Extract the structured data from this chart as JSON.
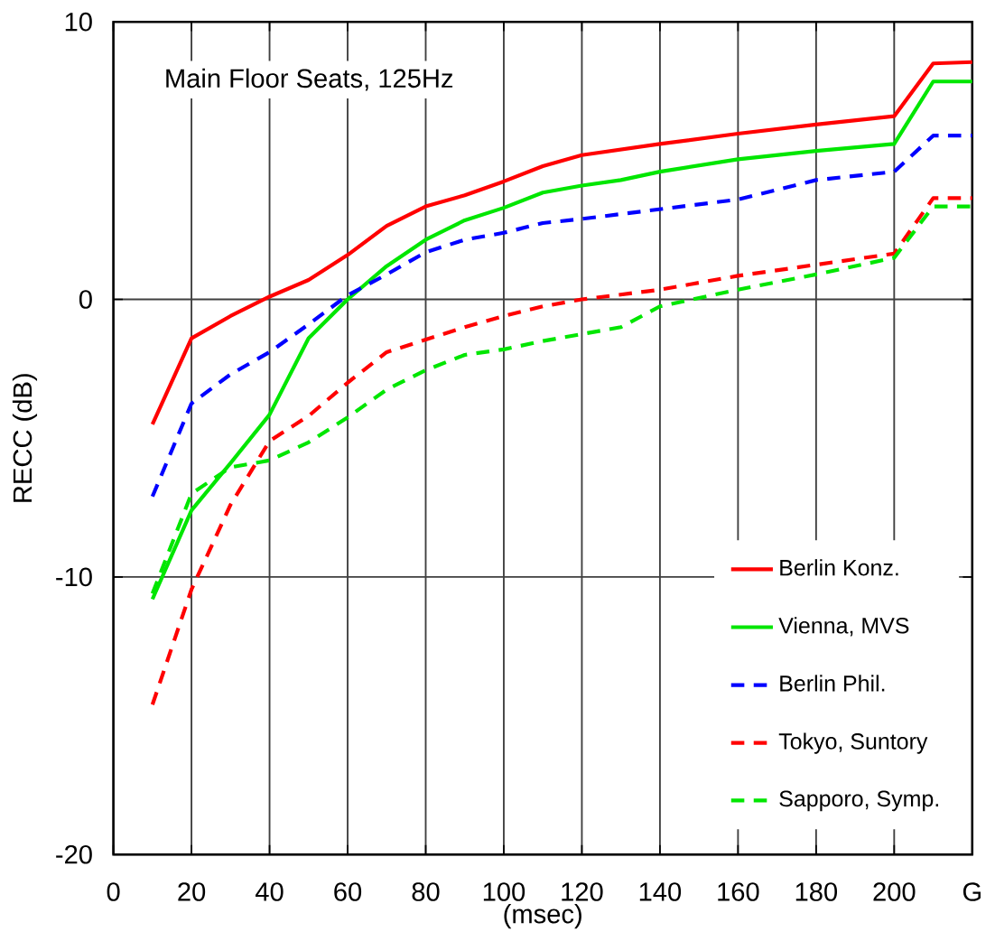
{
  "chart_data": {
    "type": "line",
    "title": "Main Floor Seats, 125Hz",
    "xlabel": "(msec)",
    "ylabel": "RECC (dB)",
    "xlim": [
      0,
      220
    ],
    "ylim": [
      -20,
      10
    ],
    "xticks": [
      0,
      20,
      40,
      60,
      80,
      100,
      120,
      140,
      160,
      180,
      200,
      {
        "value": 220,
        "label": "G"
      }
    ],
    "yticks": [
      -20,
      -10,
      0,
      10
    ],
    "grid": true,
    "legend": "bottom right",
    "marker": "none",
    "series": [
      {
        "name": "Berlin Konz.",
        "color": "#ff0000",
        "line_style": "solid",
        "x": [
          10,
          20,
          30,
          40,
          50,
          60,
          70,
          80,
          90,
          100,
          110,
          120,
          140,
          160,
          180,
          200,
          210,
          220
        ],
        "values": [
          -4.5,
          -1.4,
          -0.6,
          0.1,
          0.7,
          1.6,
          2.65,
          3.35,
          3.75,
          4.25,
          4.8,
          5.2,
          5.6,
          5.97,
          6.3,
          6.6,
          8.5,
          8.55
        ]
      },
      {
        "name": "Vienna, MVS",
        "color": "#00e600",
        "line_style": "solid",
        "x": [
          10,
          20,
          30,
          40,
          50,
          60,
          70,
          80,
          90,
          100,
          110,
          120,
          130,
          140,
          160,
          180,
          200,
          210,
          220
        ],
        "values": [
          -10.8,
          -7.6,
          -5.9,
          -4.15,
          -1.4,
          0,
          1.2,
          2.15,
          2.85,
          3.3,
          3.85,
          4.1,
          4.3,
          4.6,
          5.05,
          5.35,
          5.6,
          7.85,
          7.85
        ]
      },
      {
        "name": "Berlin Phil.",
        "color": "#0000ff",
        "line_style": "dashed",
        "x": [
          10,
          20,
          30,
          40,
          50,
          60,
          70,
          80,
          90,
          100,
          110,
          120,
          140,
          160,
          180,
          200,
          210,
          220
        ],
        "values": [
          -7.1,
          -3.75,
          -2.7,
          -1.9,
          -0.9,
          0.15,
          0.9,
          1.7,
          2.15,
          2.4,
          2.75,
          2.9,
          3.25,
          3.6,
          4.3,
          4.6,
          5.9,
          5.9
        ]
      },
      {
        "name": "Tokyo, Suntory",
        "color": "#ff0000",
        "line_style": "dashed",
        "x": [
          10,
          20,
          30,
          40,
          50,
          60,
          70,
          80,
          90,
          100,
          110,
          120,
          140,
          160,
          180,
          200,
          210,
          220
        ],
        "values": [
          -14.6,
          -10.45,
          -7.4,
          -5.1,
          -4.2,
          -3.0,
          -1.9,
          -1.45,
          -1.0,
          -0.6,
          -0.25,
          0,
          0.35,
          0.85,
          1.25,
          1.65,
          3.65,
          3.65
        ]
      },
      {
        "name": "Sapporo, Symp.",
        "color": "#00e600",
        "line_style": "dashed",
        "x": [
          10,
          20,
          30,
          40,
          50,
          60,
          70,
          80,
          90,
          100,
          110,
          120,
          130,
          140,
          160,
          180,
          200,
          210,
          220
        ],
        "values": [
          -10.6,
          -7.0,
          -6.05,
          -5.8,
          -5.15,
          -4.25,
          -3.25,
          -2.55,
          -2.0,
          -1.8,
          -1.5,
          -1.25,
          -1.0,
          -0.25,
          0.35,
          0.9,
          1.5,
          3.35,
          3.35
        ]
      }
    ]
  }
}
